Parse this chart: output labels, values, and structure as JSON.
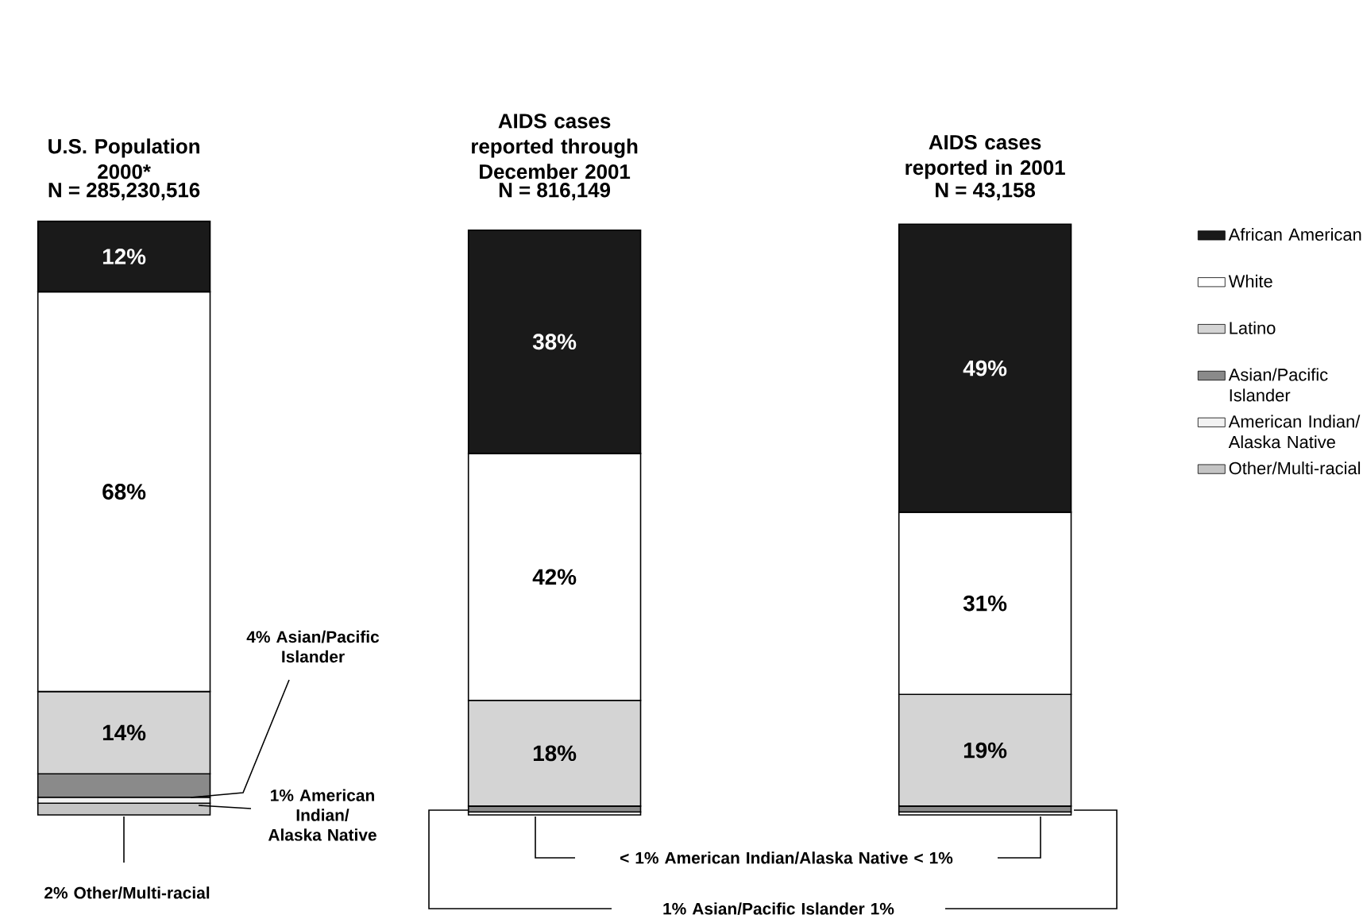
{
  "chart_data": {
    "type": "bar",
    "stacked": true,
    "legend": "right",
    "categories": [
      "U.S. Population 2000*",
      "AIDS cases reported through December 2001",
      "AIDS cases reported in 2001"
    ],
    "ylim": [
      0,
      101
    ],
    "series": [
      {
        "name": "Other/Multi-racial",
        "color": "#c4c4c4",
        "values": [
          2,
          null,
          null
        ],
        "value_labels": [
          null,
          null,
          null
        ]
      },
      {
        "name": "American Indian/ Alaska Native",
        "color": "#f2f2f2",
        "values": [
          1,
          0.5,
          0.5
        ],
        "value_labels": [
          null,
          null,
          null
        ]
      },
      {
        "name": "Asian/Pacific Islander",
        "color": "#8a8a8a",
        "values": [
          4,
          1,
          1
        ],
        "value_labels": [
          null,
          null,
          null
        ]
      },
      {
        "name": "Latino",
        "color": "#d4d4d4",
        "values": [
          14,
          18,
          19
        ],
        "value_labels": [
          "14%",
          "18%",
          "19%"
        ]
      },
      {
        "name": "White",
        "color": "#ffffff",
        "values": [
          68,
          42,
          31
        ],
        "value_labels": [
          "68%",
          "42%",
          "31%"
        ]
      },
      {
        "name": "African American",
        "color": "#1a1a1a",
        "values": [
          12,
          38,
          49
        ],
        "value_labels": [
          "12%",
          "38%",
          "49%"
        ]
      }
    ],
    "annotations": [
      "N = 285,230,516",
      "N = 816,149",
      "N = 43,158",
      "4% Asian/Pacific Islander",
      "1% American Indian/ Alaska Native",
      "2% Other/Multi-racial",
      "< 1% American Indian/Alaska Native < 1%",
      "1% Asian/Pacific Islander 1%"
    ]
  }
}
